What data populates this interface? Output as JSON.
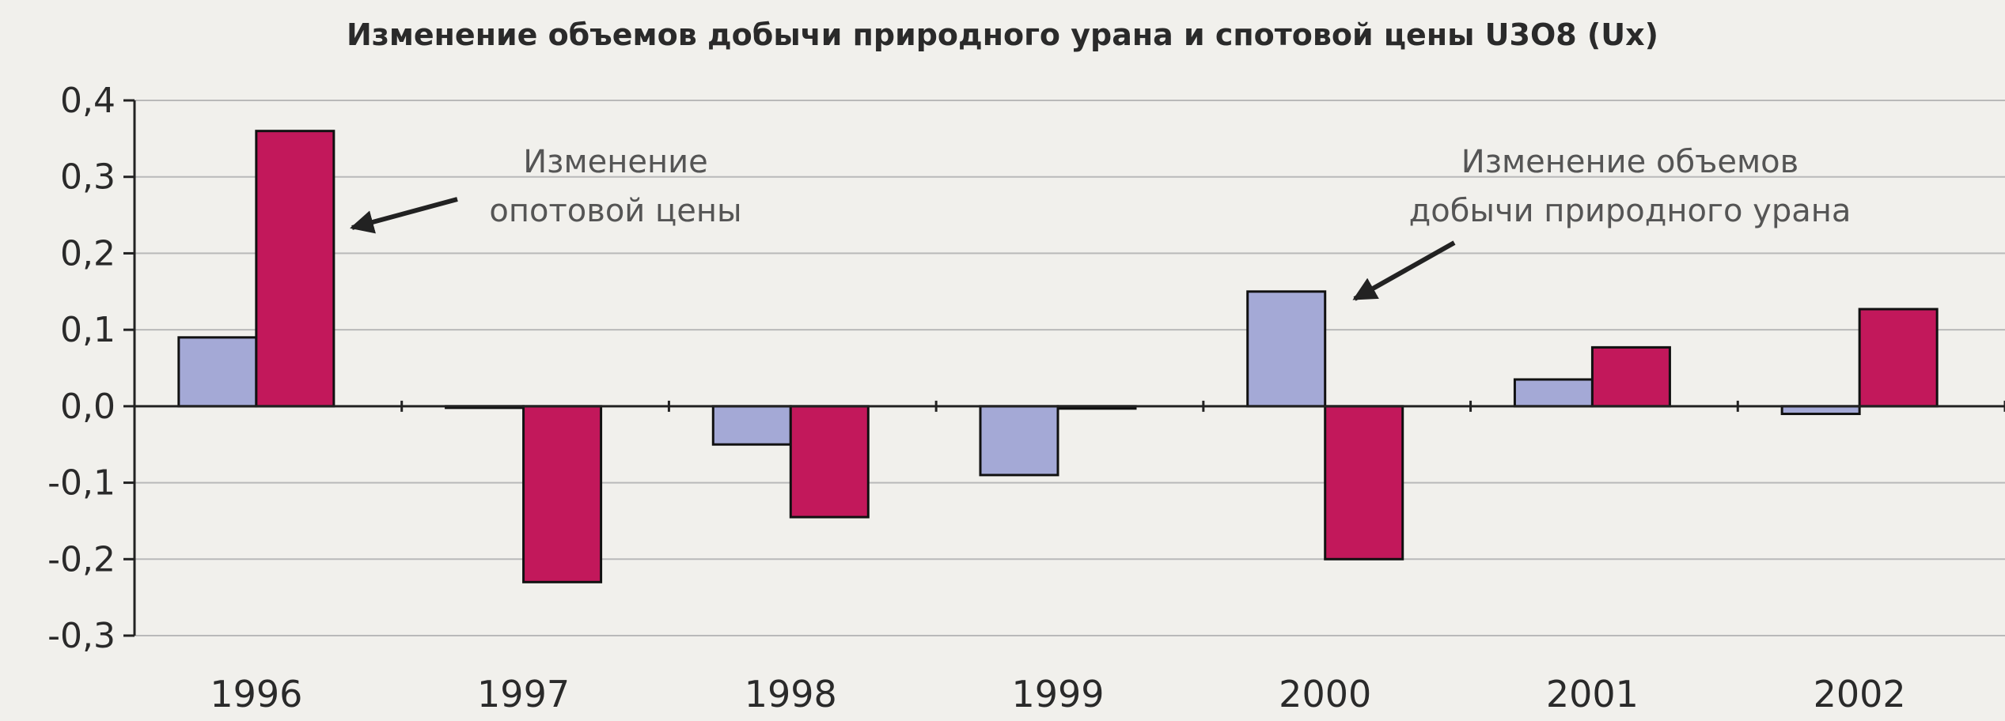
{
  "chart_data": {
    "type": "bar",
    "title": "Изменение объемов добычи природного урана и спотовой цены U3O8 (Ux)",
    "categories": [
      "1996",
      "1997",
      "1998",
      "1999",
      "2000",
      "2001",
      "2002"
    ],
    "series": [
      {
        "name": "Изменение объемов добычи природного урана",
        "color": "#a4a9d6",
        "values": [
          0.09,
          0.0,
          -0.05,
          -0.09,
          0.15,
          0.035,
          -0.01
        ]
      },
      {
        "name": "Изменение оптовой цены",
        "color": "#c2185b",
        "values": [
          0.36,
          -0.23,
          -0.145,
          -0.003,
          -0.2,
          0.077,
          0.127
        ]
      }
    ],
    "ylim": [
      -0.3,
      0.4
    ],
    "yticks": [
      "0,4",
      "0,3",
      "0,2",
      "0,1",
      "0,0",
      "-0,1",
      "-0,2",
      "-0,3"
    ],
    "grid": true,
    "legend": "none",
    "annotations": {
      "price": [
        "Изменение",
        "опотовой цены"
      ],
      "volume": [
        "Изменение объемов",
        "добычи природного урана"
      ]
    }
  }
}
